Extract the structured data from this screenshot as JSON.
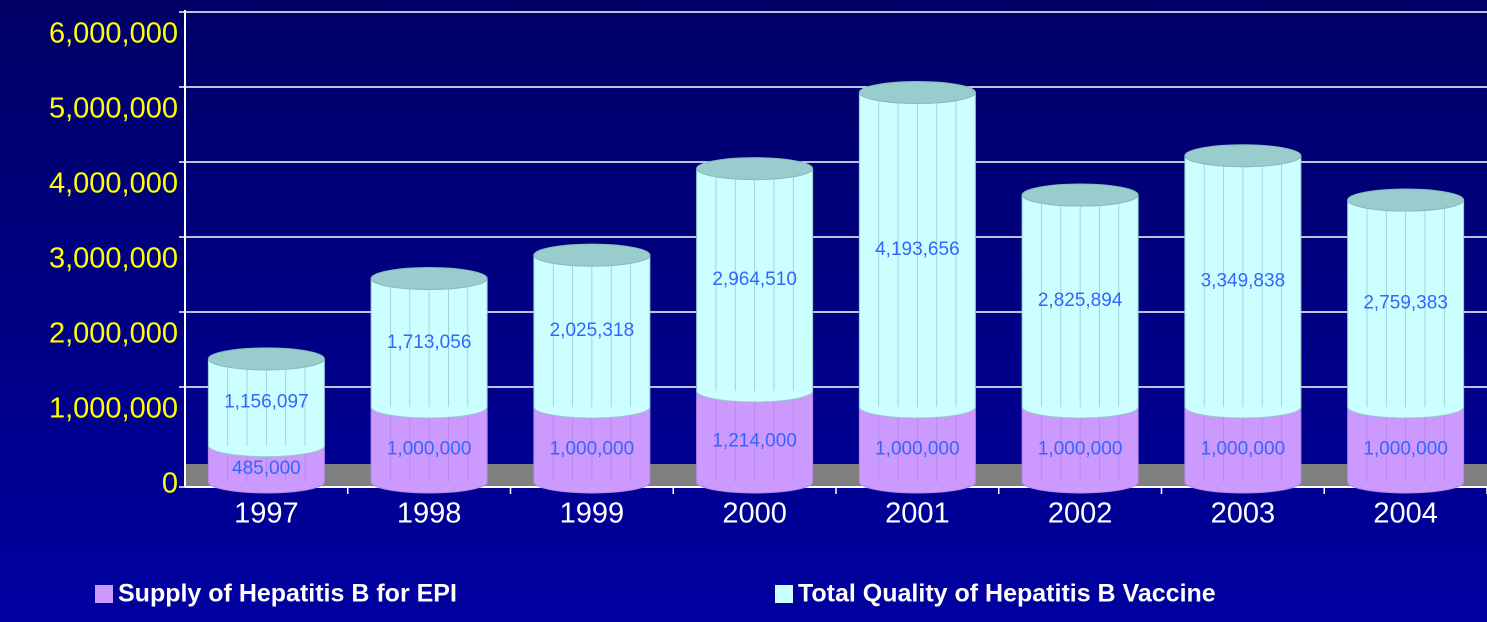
{
  "chart_data": {
    "type": "stacked_cylinder",
    "categories": [
      "1997",
      "1998",
      "1999",
      "2000",
      "2001",
      "2002",
      "2003",
      "2004"
    ],
    "series": [
      {
        "name": "Supply of Hepatitis B for EPI",
        "color": "#cc99ff",
        "values": [
          485000,
          1000000,
          1000000,
          1214000,
          1000000,
          1000000,
          1000000,
          1000000
        ],
        "value_labels": [
          "485,000",
          "1,000,000",
          "1,000,000",
          "1,214,000",
          "1,000,000",
          "1,000,000",
          "1,000,000",
          "1,000,000"
        ]
      },
      {
        "name": "Total Quality of Hepatitis B Vaccine",
        "color": "#ccffff",
        "values": [
          1156097,
          1713056,
          2025318,
          2964510,
          4193656,
          2825894,
          3349838,
          2759383
        ],
        "value_labels": [
          "1,156,097",
          "1,713,056",
          "2,025,318",
          "2,964,510",
          "4,193,656",
          "2,825,894",
          "3,349,838",
          "2,759,383"
        ]
      }
    ],
    "ylim": [
      0,
      6000000
    ],
    "yticks": [
      0,
      {
        "value": 1000000,
        "label": "1,000,000"
      },
      {
        "value": 2000000,
        "label": "2,000,000"
      },
      {
        "value": 3000000,
        "label": "3,000,000"
      },
      {
        "value": 4000000,
        "label": "4,000,000"
      },
      {
        "value": 5000000,
        "label": "5,000,000"
      },
      {
        "value": 6000000,
        "label": "6,000,000"
      }
    ],
    "grid": true
  }
}
